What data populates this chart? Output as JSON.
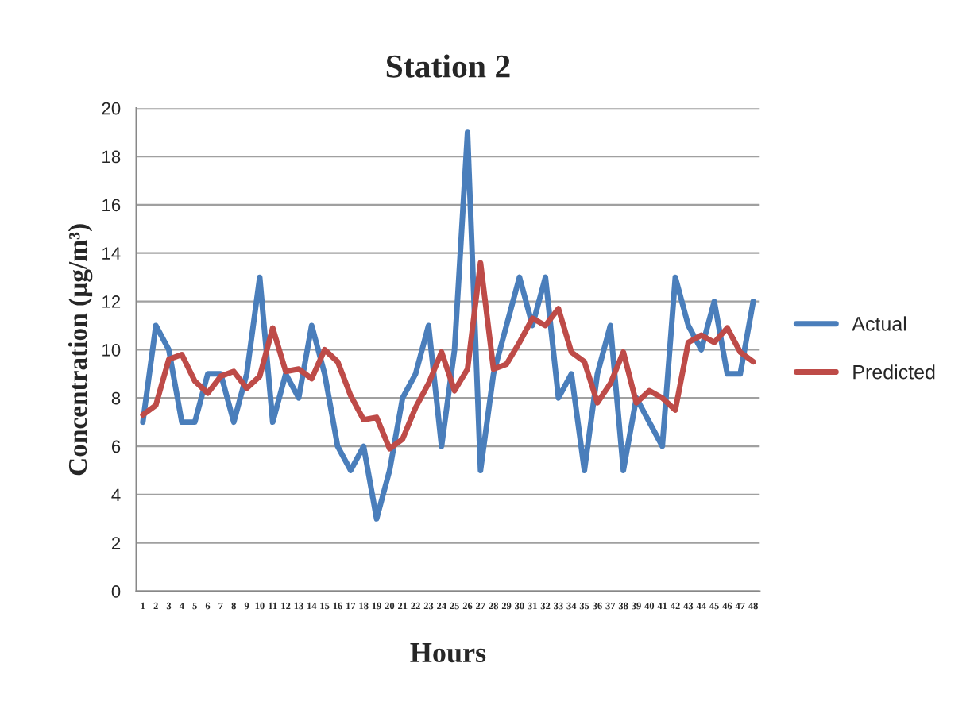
{
  "chart_data": {
    "type": "line",
    "title": "Station 2",
    "xlabel": "Hours",
    "ylabel": "Concentration (µg/m³)",
    "categories": [
      "1",
      "2",
      "3",
      "4",
      "5",
      "6",
      "7",
      "8",
      "9",
      "10",
      "11",
      "12",
      "13",
      "14",
      "15",
      "16",
      "17",
      "18",
      "19",
      "20",
      "21",
      "22",
      "23",
      "24",
      "25",
      "26",
      "27",
      "28",
      "29",
      "30",
      "31",
      "32",
      "33",
      "34",
      "35",
      "36",
      "37",
      "38",
      "39",
      "40",
      "41",
      "42",
      "43",
      "44",
      "45",
      "46",
      "47",
      "48"
    ],
    "series": [
      {
        "name": "Actual",
        "color": "#4a7ebb",
        "values": [
          7,
          11,
          10,
          7,
          7,
          9,
          9,
          7,
          9,
          13,
          7,
          9,
          8,
          11,
          9,
          6,
          5,
          6,
          3,
          5,
          8,
          9,
          11,
          6,
          10,
          19,
          5,
          9,
          11,
          13,
          11,
          13,
          8,
          9,
          5,
          9,
          11,
          5,
          8,
          7,
          6,
          13,
          11,
          10,
          12,
          9,
          9,
          12
        ]
      },
      {
        "name": "Predicted",
        "color": "#be4b48",
        "values": [
          7.3,
          7.7,
          9.6,
          9.8,
          8.7,
          8.2,
          8.9,
          9.1,
          8.4,
          8.9,
          10.9,
          9.1,
          9.2,
          8.8,
          10,
          9.5,
          8.1,
          7.1,
          7.2,
          5.9,
          6.3,
          7.6,
          8.6,
          9.9,
          8.3,
          9.2,
          13.6,
          9.2,
          9.4,
          10.3,
          11.3,
          11,
          11.7,
          9.9,
          9.5,
          7.8,
          8.6,
          9.9,
          7.8,
          8.3,
          8.0,
          7.5,
          10.3,
          10.6,
          10.3,
          10.9,
          9.9,
          9.5
        ]
      }
    ],
    "ylim": [
      0,
      20
    ],
    "yticks": [
      0,
      2,
      4,
      6,
      8,
      10,
      12,
      14,
      16,
      18,
      20
    ],
    "grid": "y",
    "legend": "right",
    "marker": "none",
    "line_style": "solid"
  }
}
